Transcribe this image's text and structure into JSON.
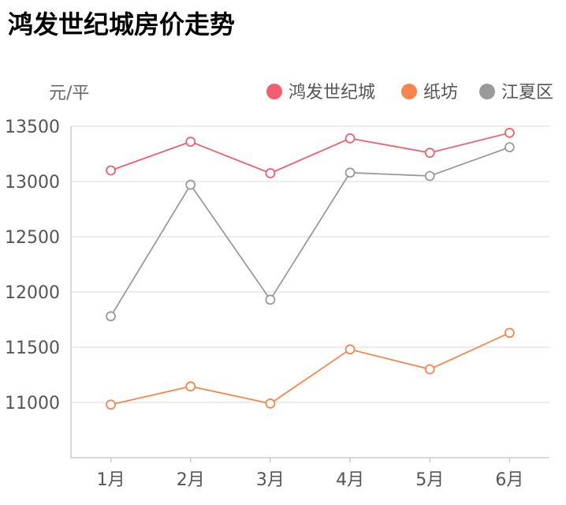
{
  "chart_data": {
    "type": "line",
    "title": "鸿发世纪城房价走势",
    "ylabel": "元/平",
    "xlabel": "",
    "categories": [
      "1月",
      "2月",
      "3月",
      "4月",
      "5月",
      "6月"
    ],
    "ylim": [
      10500,
      13500
    ],
    "yticks": [
      11000,
      11500,
      12000,
      12500,
      13000,
      13500
    ],
    "grid": true,
    "legend_position": "top-right",
    "series": [
      {
        "name": "鸿发世纪城",
        "color": "#ef5f6e",
        "values": [
          13100,
          13360,
          13075,
          13390,
          13260,
          13440
        ]
      },
      {
        "name": "纸坊",
        "color": "#f7864c",
        "values": [
          10980,
          11145,
          10990,
          11480,
          11300,
          11630
        ]
      },
      {
        "name": "江夏区",
        "color": "#9a9a9a",
        "values": [
          11780,
          12970,
          11930,
          13080,
          13050,
          13310
        ]
      }
    ]
  }
}
